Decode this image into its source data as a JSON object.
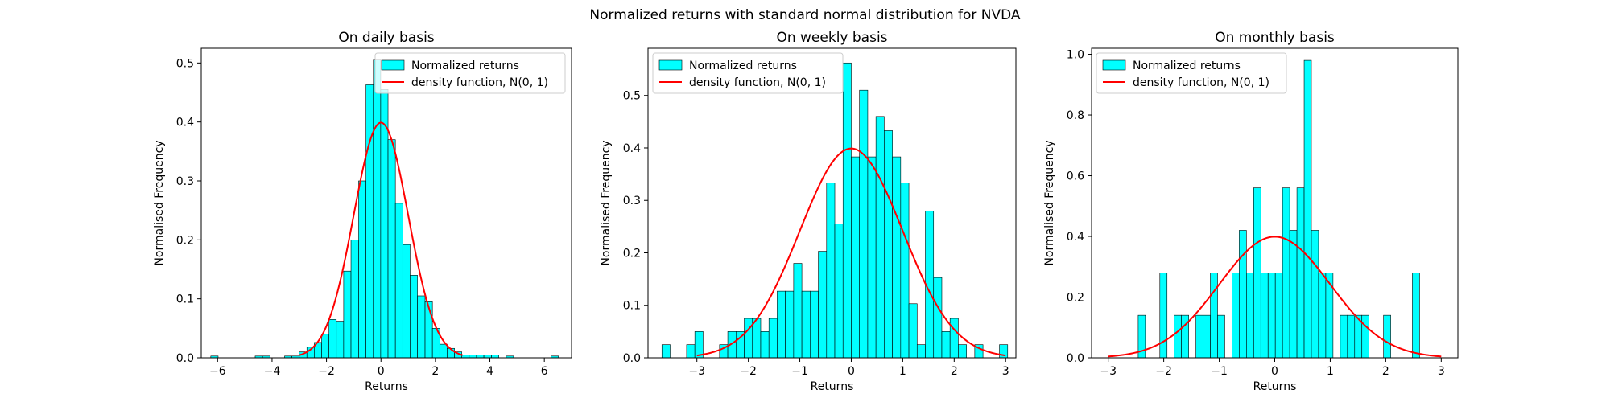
{
  "figure": {
    "title": "Normalized returns with standard normal distribution for NVDA"
  },
  "chart_data": [
    {
      "type": "bar",
      "title": "On daily basis",
      "xlabel": "Returns",
      "ylabel": "Normalised Frequency",
      "xlim": [
        -6.6,
        7.0
      ],
      "ylim": [
        0,
        0.525
      ],
      "xticks": [
        -6,
        -4,
        -2,
        0,
        2,
        4,
        6
      ],
      "yticks": [
        0.0,
        0.1,
        0.2,
        0.3,
        0.4,
        0.5
      ],
      "grid": false,
      "legend_position": "top-right",
      "series": [
        {
          "name": "Normalized returns",
          "kind": "histogram",
          "color": "#00ffff",
          "edgecolor": "#000000",
          "bins": [
            [
              -6.25,
              -5.98,
              0.003
            ],
            [
              -4.62,
              -4.35,
              0.003
            ],
            [
              -4.35,
              -4.08,
              0.003
            ],
            [
              -3.54,
              -3.27,
              0.003
            ],
            [
              -3.27,
              -3.0,
              0.003
            ],
            [
              -3.0,
              -2.72,
              0.01
            ],
            [
              -2.72,
              -2.45,
              0.018
            ],
            [
              -2.45,
              -2.18,
              0.026
            ],
            [
              -2.18,
              -1.91,
              0.04
            ],
            [
              -1.91,
              -1.64,
              0.065
            ],
            [
              -1.64,
              -1.37,
              0.062
            ],
            [
              -1.37,
              -1.1,
              0.147
            ],
            [
              -1.1,
              -0.82,
              0.2
            ],
            [
              -0.82,
              -0.55,
              0.3
            ],
            [
              -0.55,
              -0.28,
              0.463
            ],
            [
              -0.28,
              -0.01,
              0.505
            ],
            [
              -0.01,
              0.26,
              0.455
            ],
            [
              0.26,
              0.53,
              0.37
            ],
            [
              0.53,
              0.8,
              0.262
            ],
            [
              0.8,
              1.07,
              0.192
            ],
            [
              1.07,
              1.34,
              0.14
            ],
            [
              1.34,
              1.62,
              0.105
            ],
            [
              1.62,
              1.89,
              0.095
            ],
            [
              1.89,
              2.16,
              0.05
            ],
            [
              2.16,
              2.43,
              0.023
            ],
            [
              2.43,
              2.7,
              0.016
            ],
            [
              2.7,
              2.97,
              0.01
            ],
            [
              2.97,
              3.24,
              0.005
            ],
            [
              3.24,
              3.51,
              0.005
            ],
            [
              3.51,
              3.78,
              0.005
            ],
            [
              3.78,
              4.06,
              0.005
            ],
            [
              4.06,
              4.33,
              0.005
            ],
            [
              4.6,
              4.87,
              0.003
            ],
            [
              6.25,
              6.52,
              0.003
            ]
          ]
        },
        {
          "name": "density function, N(0, 1)",
          "kind": "normal_pdf",
          "mean": 0,
          "std": 1,
          "x_range": [
            -3,
            3
          ],
          "color": "#ff0000"
        }
      ]
    },
    {
      "type": "bar",
      "title": "On weekly basis",
      "xlabel": "Returns",
      "ylabel": "Normalised Frequency",
      "xlim": [
        -3.95,
        3.2
      ],
      "ylim": [
        0,
        0.59
      ],
      "xticks": [
        -3,
        -2,
        -1,
        0,
        1,
        2,
        3
      ],
      "yticks": [
        0.0,
        0.1,
        0.2,
        0.3,
        0.4,
        0.5
      ],
      "grid": false,
      "legend_position": "top-left",
      "series": [
        {
          "name": "Normalized returns",
          "kind": "histogram",
          "color": "#00ffff",
          "edgecolor": "#000000",
          "bins": [
            [
              -3.68,
              -3.52,
              0.025
            ],
            [
              -3.2,
              -3.04,
              0.025
            ],
            [
              -3.04,
              -2.88,
              0.05
            ],
            [
              -2.56,
              -2.4,
              0.025
            ],
            [
              -2.4,
              -2.24,
              0.05
            ],
            [
              -2.24,
              -2.08,
              0.05
            ],
            [
              -2.08,
              -1.92,
              0.075
            ],
            [
              -1.92,
              -1.76,
              0.075
            ],
            [
              -1.76,
              -1.6,
              0.05
            ],
            [
              -1.6,
              -1.44,
              0.075
            ],
            [
              -1.44,
              -1.28,
              0.127
            ],
            [
              -1.28,
              -1.12,
              0.127
            ],
            [
              -1.12,
              -0.96,
              0.18
            ],
            [
              -0.96,
              -0.8,
              0.127
            ],
            [
              -0.8,
              -0.64,
              0.127
            ],
            [
              -0.64,
              -0.48,
              0.203
            ],
            [
              -0.48,
              -0.32,
              0.333
            ],
            [
              -0.32,
              -0.16,
              0.255
            ],
            [
              -0.16,
              0.0,
              0.562
            ],
            [
              0.0,
              0.16,
              0.383
            ],
            [
              0.16,
              0.32,
              0.51
            ],
            [
              0.32,
              0.48,
              0.383
            ],
            [
              0.48,
              0.64,
              0.46
            ],
            [
              0.64,
              0.8,
              0.433
            ],
            [
              0.8,
              0.96,
              0.383
            ],
            [
              0.96,
              1.12,
              0.333
            ],
            [
              1.12,
              1.28,
              0.103
            ],
            [
              1.28,
              1.44,
              0.025
            ],
            [
              1.44,
              1.6,
              0.28
            ],
            [
              1.6,
              1.76,
              0.153
            ],
            [
              1.76,
              1.92,
              0.05
            ],
            [
              1.92,
              2.08,
              0.075
            ],
            [
              2.08,
              2.24,
              0.025
            ],
            [
              2.4,
              2.56,
              0.025
            ],
            [
              2.88,
              3.04,
              0.025
            ]
          ]
        },
        {
          "name": "density function, N(0, 1)",
          "kind": "normal_pdf",
          "mean": 0,
          "std": 1,
          "x_range": [
            -3,
            3
          ],
          "color": "#ff0000"
        }
      ]
    },
    {
      "type": "bar",
      "title": "On monthly basis",
      "xlabel": "Returns",
      "ylabel": "Normalised Frequency",
      "xlim": [
        -3.3,
        3.3
      ],
      "ylim": [
        0,
        1.02
      ],
      "xticks": [
        -3,
        -2,
        -1,
        0,
        1,
        2,
        3
      ],
      "yticks": [
        0.0,
        0.2,
        0.4,
        0.6,
        0.8,
        1.0
      ],
      "grid": false,
      "legend_position": "top-left",
      "series": [
        {
          "name": "Normalized returns",
          "kind": "histogram",
          "color": "#00ffff",
          "edgecolor": "#000000",
          "bins": [
            [
              -2.46,
              -2.33,
              0.14
            ],
            [
              -2.07,
              -1.94,
              0.28
            ],
            [
              -1.81,
              -1.68,
              0.14
            ],
            [
              -1.68,
              -1.55,
              0.14
            ],
            [
              -1.42,
              -1.29,
              0.14
            ],
            [
              -1.29,
              -1.16,
              0.14
            ],
            [
              -1.16,
              -1.03,
              0.28
            ],
            [
              -1.03,
              -0.9,
              0.14
            ],
            [
              -0.77,
              -0.64,
              0.28
            ],
            [
              -0.64,
              -0.51,
              0.42
            ],
            [
              -0.51,
              -0.38,
              0.28
            ],
            [
              -0.38,
              -0.25,
              0.56
            ],
            [
              -0.25,
              -0.12,
              0.28
            ],
            [
              -0.12,
              0.01,
              0.28
            ],
            [
              0.01,
              0.14,
              0.28
            ],
            [
              0.14,
              0.27,
              0.56
            ],
            [
              0.27,
              0.4,
              0.42
            ],
            [
              0.4,
              0.53,
              0.56
            ],
            [
              0.53,
              0.66,
              0.98
            ],
            [
              0.66,
              0.79,
              0.42
            ],
            [
              0.79,
              0.92,
              0.28
            ],
            [
              0.92,
              1.05,
              0.28
            ],
            [
              1.18,
              1.31,
              0.14
            ],
            [
              1.31,
              1.44,
              0.14
            ],
            [
              1.44,
              1.57,
              0.14
            ],
            [
              1.57,
              1.7,
              0.14
            ],
            [
              1.96,
              2.09,
              0.14
            ],
            [
              2.48,
              2.61,
              0.28
            ]
          ]
        },
        {
          "name": "density function, N(0, 1)",
          "kind": "normal_pdf",
          "mean": 0,
          "std": 1,
          "x_range": [
            -3,
            3
          ],
          "color": "#ff0000"
        }
      ]
    }
  ]
}
